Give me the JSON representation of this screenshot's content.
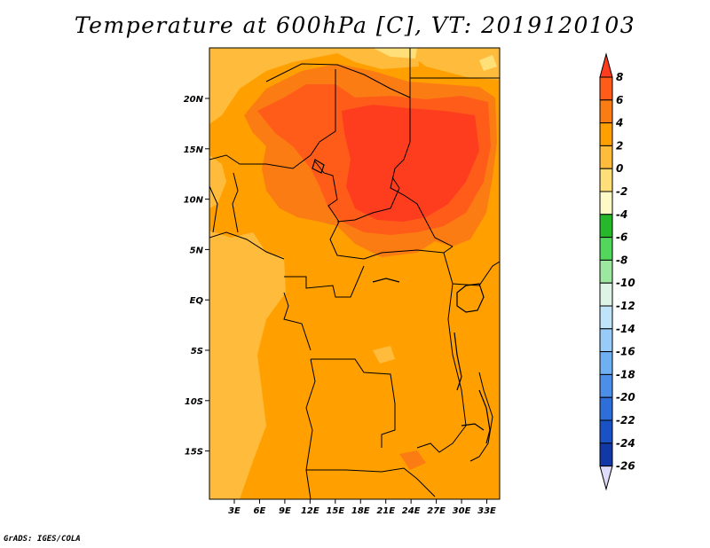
{
  "title": "Temperature at 600hPa [C], VT: 2019120103",
  "footer": "GrADS: IGES/COLA",
  "map": {
    "lat_labels": [
      "20N",
      "15N",
      "10N",
      "5N",
      "EQ",
      "5S",
      "10S",
      "15S"
    ],
    "lon_labels": [
      "3E",
      "6E",
      "9E",
      "12E",
      "15E",
      "18E",
      "21E",
      "24E",
      "27E",
      "30E",
      "33E"
    ]
  },
  "colorbar": {
    "levels": [
      "8",
      "6",
      "4",
      "2",
      "0",
      "-2",
      "-4",
      "-6",
      "-8",
      "-10",
      "-12",
      "-14",
      "-16",
      "-18",
      "-20",
      "-22",
      "-24",
      "-26"
    ],
    "colors": [
      "#fe3c1e",
      "#ff5c1a",
      "#fc7c14",
      "#ffa000",
      "#ffbb3c",
      "#ffe078",
      "#fefac8",
      "#27b72a",
      "#52d65b",
      "#9de8a0",
      "#ddf4e6",
      "#bfe3f9",
      "#98cbf7",
      "#6fb0f2",
      "#4c8ee8",
      "#2d6ed8",
      "#1a52c6",
      "#1238a5",
      "#0a166e",
      "#dedcfa"
    ]
  }
}
